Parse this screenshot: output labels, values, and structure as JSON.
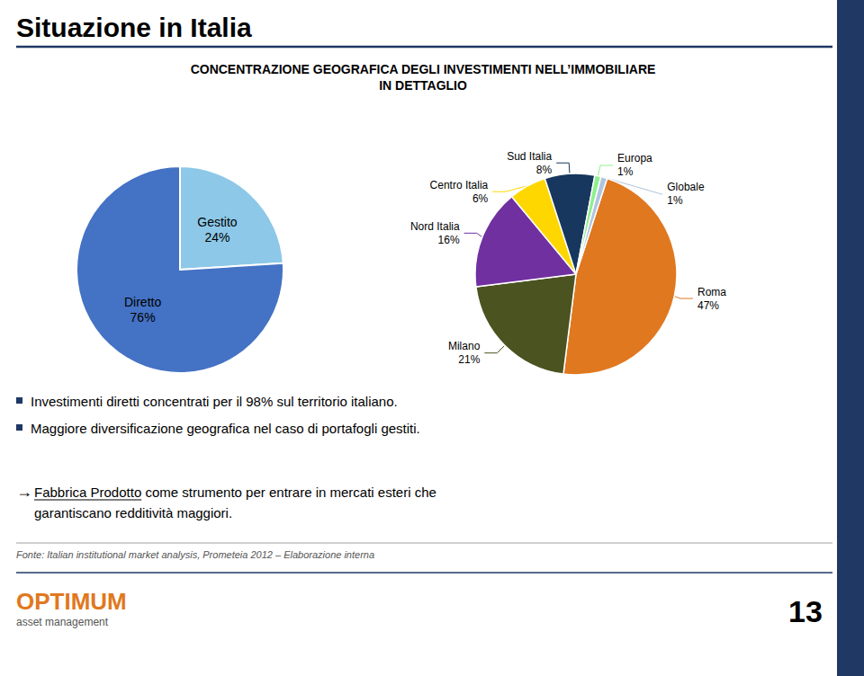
{
  "chart_data": [
    {
      "type": "pie",
      "title": "Situazione in Italia",
      "subtitle": "CONCENTRAZIONE GEOGRAFICA DEGLI INVESTIMENTI NELL’IMMOBILIARE\nIN DETTAGLIO",
      "categories": [
        "Gestito",
        "Diretto"
      ],
      "values": [
        24,
        76
      ],
      "value_labels": [
        "24%",
        "76%"
      ],
      "colors": [
        "#8DC8E8",
        "#4472C4"
      ],
      "data_labels": true,
      "annotations": [
        "Maggiore diversificazione geografica nel caso di portafogli gestiti.",
        "Investimenti diretti concentrati per il 98% sul territorio italiano.",
        "→",
        "Fabbrica Prodotto",
        " come strumento per entrare in mercati esteri che",
        "garantiscano redditività maggiori.",
        "Fonte: Italian institutional market analysis, Prometeia 2012 – Elaborazione interna",
        "OPTIMUM",
        "asset management",
        "13"
      ]
    },
    {
      "type": "pie",
      "categories": [
        "Roma",
        "Milano",
        "Nord Italia",
        "Centro Italia",
        "Sud Italia",
        "Europa",
        "Globale"
      ],
      "values": [
        47,
        21,
        16,
        6,
        8,
        1,
        1
      ],
      "value_labels": [
        "47%",
        "21%",
        "16%",
        "6%",
        "8%",
        "1%",
        "1%"
      ],
      "colors": [
        "#E07820",
        "#4B5320",
        "#7030A0",
        "#FFD700",
        "#17375E",
        "#90EE90",
        "#B0C4DE"
      ],
      "data_labels": true
    }
  ]
}
